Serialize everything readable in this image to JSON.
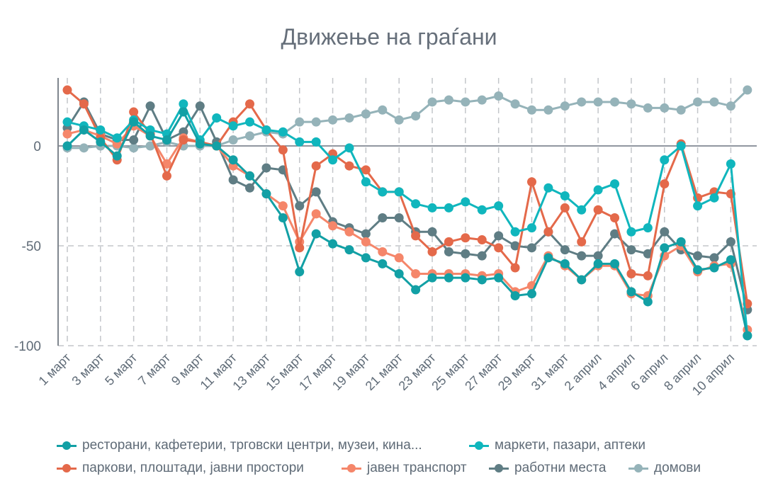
{
  "chart_data": {
    "type": "line",
    "title": "Движење на граѓани",
    "xlabel": "",
    "ylabel": "",
    "ylim": [
      -100,
      30
    ],
    "yticks": [
      "0",
      "-50",
      "-100"
    ],
    "ytick_values": [
      0,
      -50,
      -100
    ],
    "x_tick_labels": [
      "1 март",
      "3 март",
      "5 март",
      "7 март",
      "9 март",
      "11 март",
      "13 март",
      "15 март",
      "17 март",
      "19 март",
      "21 март",
      "23 март",
      "25 март",
      "27 март",
      "29 март",
      "31 март",
      "2 април",
      "4 април",
      "6 април",
      "8 април",
      "10 април"
    ],
    "num_points": 42,
    "grid": true,
    "legend_position": "bottom",
    "series": [
      {
        "name": "ресторани, кафетерии, трговски центри, музеи, кина...",
        "color": "#12a0a5",
        "values": [
          0,
          8,
          2,
          -5,
          12,
          5,
          3,
          17,
          1,
          0,
          -7,
          -15,
          -24,
          -36,
          -63,
          -44,
          -49,
          -52,
          -56,
          -59,
          -64,
          -72,
          -66,
          -66,
          -66,
          -67,
          -66,
          -75,
          -74,
          -56,
          -59,
          -67,
          -59,
          -59,
          -73,
          -78,
          -51,
          -48,
          -62,
          -61,
          -57,
          -95
        ]
      },
      {
        "name": "маркети, пазари, аптеки",
        "color": "#10b6bd",
        "values": [
          12,
          10,
          8,
          4,
          13,
          8,
          6,
          21,
          3,
          14,
          10,
          12,
          8,
          7,
          2,
          2,
          -7,
          -1,
          -18,
          -23,
          -23,
          -29,
          -31,
          -31,
          -28,
          -32,
          -30,
          -43,
          -41,
          -21,
          -25,
          -32,
          -22,
          -19,
          -43,
          -41,
          -7,
          0,
          -30,
          -26,
          -9,
          -95
        ]
      },
      {
        "name": "паркови, плоштади, јавни простори",
        "color": "#e4694a",
        "values": [
          28,
          21,
          4,
          -7,
          17,
          6,
          -15,
          3,
          2,
          0,
          12,
          21,
          8,
          -2,
          -51,
          -10,
          -4,
          -10,
          -12,
          -23,
          -23,
          -45,
          -53,
          -48,
          -46,
          -47,
          -51,
          -61,
          -18,
          -43,
          -31,
          -48,
          -32,
          -36,
          -64,
          -65,
          -19,
          1,
          -26,
          -23,
          -24,
          -79
        ]
      },
      {
        "name": "јавен транспорт",
        "color": "#f5866a",
        "values": [
          6,
          8,
          5,
          1,
          10,
          5,
          -9,
          4,
          2,
          0,
          -10,
          -15,
          -24,
          -30,
          -48,
          -34,
          -40,
          -43,
          -48,
          -53,
          -56,
          -64,
          -64,
          -64,
          -64,
          -65,
          -64,
          -73,
          -70,
          -55,
          -60,
          -67,
          -60,
          -60,
          -74,
          -75,
          -55,
          -50,
          -63,
          -60,
          -59,
          -92
        ]
      },
      {
        "name": "работни места",
        "color": "#5f7d84",
        "values": [
          9,
          22,
          6,
          3,
          3,
          20,
          3,
          7,
          20,
          2,
          -17,
          -21,
          -11,
          -12,
          -30,
          -23,
          -38,
          -41,
          -44,
          -36,
          -36,
          -43,
          -43,
          -53,
          -54,
          -55,
          -45,
          -50,
          -51,
          -43,
          -52,
          -55,
          -55,
          -44,
          -52,
          -54,
          -43,
          -52,
          -55,
          -56,
          -48,
          -82
        ]
      },
      {
        "name": "домови",
        "color": "#95b3b9",
        "values": [
          -1,
          -1,
          0,
          0,
          -1,
          0,
          2,
          0,
          0,
          0,
          3,
          5,
          7,
          6,
          12,
          12,
          13,
          14,
          16,
          18,
          13,
          15,
          22,
          23,
          22,
          23,
          25,
          21,
          18,
          18,
          20,
          22,
          22,
          22,
          21,
          19,
          19,
          18,
          22,
          22,
          20,
          28
        ]
      }
    ]
  }
}
